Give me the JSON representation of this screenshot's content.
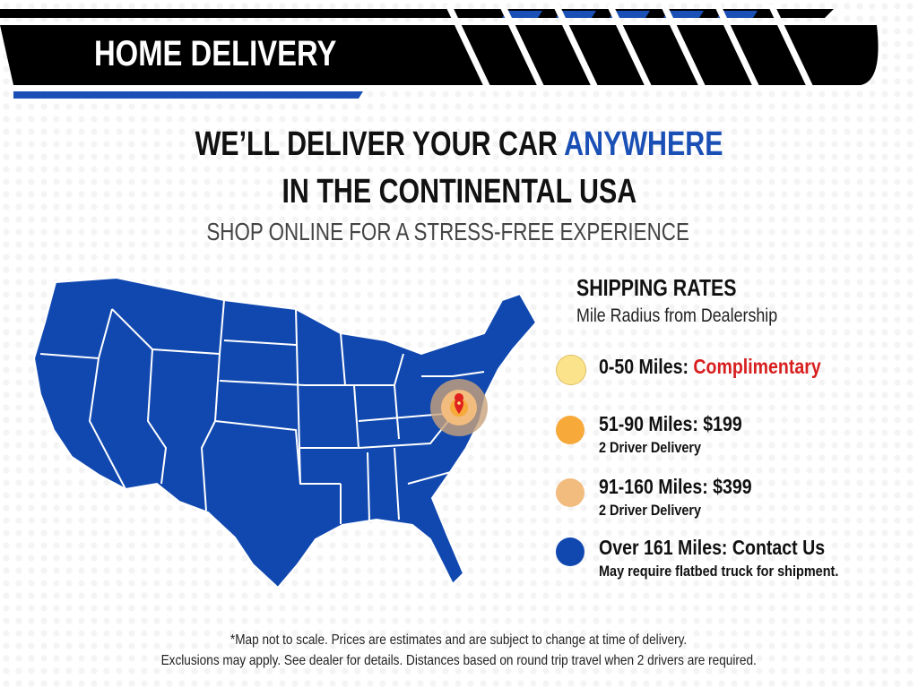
{
  "header": {
    "title": "HOME DELIVERY"
  },
  "headline": {
    "line1_prefix": "WE’LL DELIVER YOUR CAR ",
    "line1_accent": "ANYWHERE",
    "line2": "IN THE CONTINENTAL USA",
    "subhead": "SHOP ONLINE FOR A STRESS-FREE EXPERIENCE"
  },
  "rates": {
    "title": "SHIPPING RATES",
    "subtitle": "Mile Radius from Dealership",
    "items": [
      {
        "label": "0-50 Miles: ",
        "value": "Complimentary",
        "color": "#fbe38c"
      },
      {
        "label": "51-90 Miles: $199",
        "sub": "2 Driver Delivery",
        "color": "#f7a93a"
      },
      {
        "label": "91-160 Miles: $399",
        "sub": "2 Driver Delivery",
        "color": "#f2bc7e"
      },
      {
        "label": "Over 161 Miles: Contact Us",
        "sub": "May require flatbed truck for shipment.",
        "color": "#1048b0"
      }
    ]
  },
  "colors": {
    "brand_blue": "#1a4fb5",
    "black": "#000000",
    "highlight_red": "#d81e1e"
  },
  "footer": {
    "line1": "*Map not to scale. Prices are estimates and are subject to change at time of delivery.",
    "line2": "Exclusions may apply. See dealer for details. Distances based on round trip travel when 2 drivers are required."
  }
}
